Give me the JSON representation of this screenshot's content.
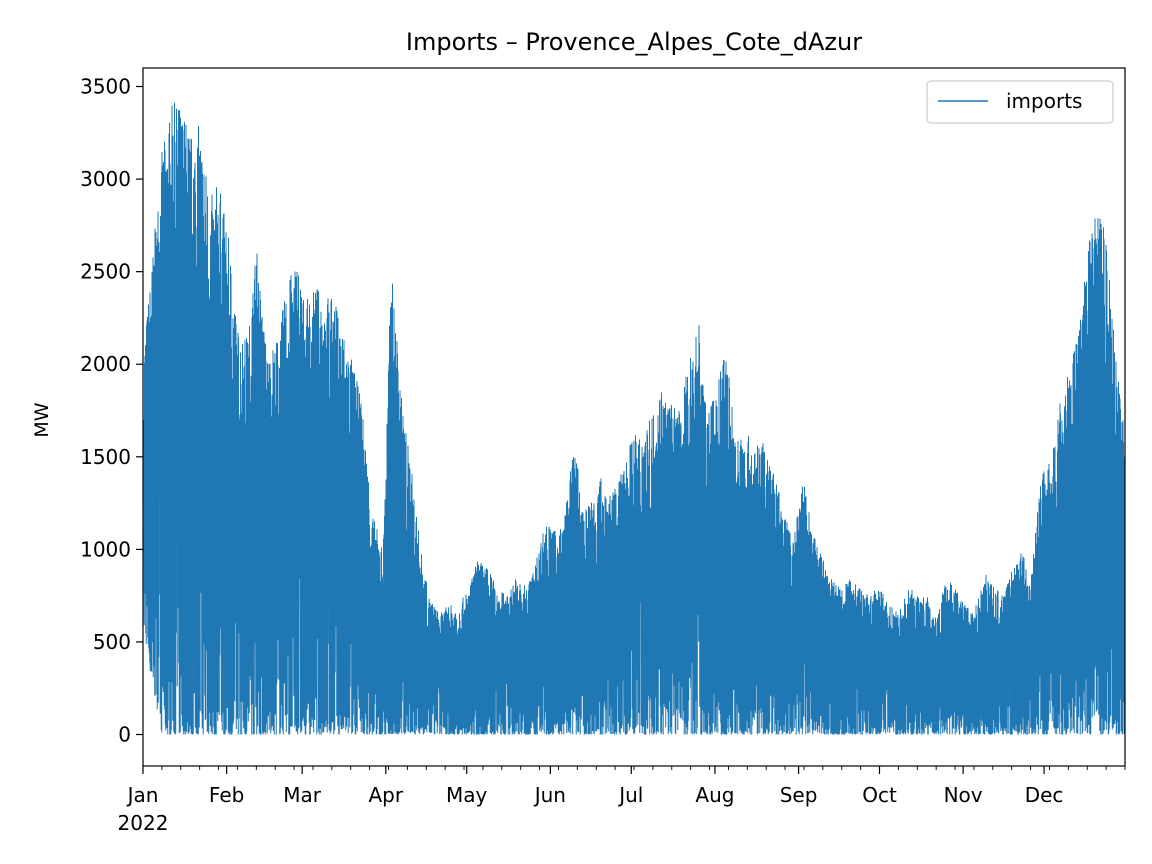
{
  "chart_data": {
    "type": "line",
    "title": "Imports – Provence_Alpes_Cote_dAzur",
    "ylabel": "MW",
    "xlabel": "",
    "x_range": [
      "2022-01-01",
      "2022-12-31"
    ],
    "ylim": [
      -170,
      3600
    ],
    "y_ticks": [
      0,
      500,
      1000,
      1500,
      2000,
      2500,
      3000,
      3500
    ],
    "x_ticks": [
      {
        "date": "2022-01-01",
        "label": "Jan",
        "sublabel": "2022"
      },
      {
        "date": "2022-02-01",
        "label": "Feb"
      },
      {
        "date": "2022-03-01",
        "label": "Mar"
      },
      {
        "date": "2022-04-01",
        "label": "Apr"
      },
      {
        "date": "2022-05-01",
        "label": "May"
      },
      {
        "date": "2022-06-01",
        "label": "Jun"
      },
      {
        "date": "2022-07-01",
        "label": "Jul"
      },
      {
        "date": "2022-08-01",
        "label": "Aug"
      },
      {
        "date": "2022-09-01",
        "label": "Sep"
      },
      {
        "date": "2022-10-01",
        "label": "Oct"
      },
      {
        "date": "2022-11-01",
        "label": "Nov"
      },
      {
        "date": "2022-12-01",
        "label": "Dec"
      }
    ],
    "grid": false,
    "legend": {
      "position": "top-right",
      "entries": [
        "imports"
      ]
    },
    "series": [
      {
        "name": "imports",
        "color": "#1f77b4",
        "x": [
          "2022-01-01",
          "2022-01-04",
          "2022-01-08",
          "2022-01-12",
          "2022-01-15",
          "2022-01-19",
          "2022-01-22",
          "2022-01-26",
          "2022-01-29",
          "2022-02-02",
          "2022-02-05",
          "2022-02-09",
          "2022-02-12",
          "2022-02-16",
          "2022-02-20",
          "2022-02-23",
          "2022-02-27",
          "2022-03-02",
          "2022-03-06",
          "2022-03-09",
          "2022-03-13",
          "2022-03-16",
          "2022-03-20",
          "2022-03-23",
          "2022-03-27",
          "2022-03-31",
          "2022-04-03",
          "2022-04-07",
          "2022-04-10",
          "2022-04-14",
          "2022-04-17",
          "2022-04-21",
          "2022-04-24",
          "2022-04-28",
          "2022-05-02",
          "2022-05-05",
          "2022-05-09",
          "2022-05-12",
          "2022-05-16",
          "2022-05-19",
          "2022-05-23",
          "2022-05-26",
          "2022-05-30",
          "2022-06-03",
          "2022-06-06",
          "2022-06-10",
          "2022-06-13",
          "2022-06-17",
          "2022-06-20",
          "2022-06-24",
          "2022-06-27",
          "2022-07-01",
          "2022-07-05",
          "2022-07-08",
          "2022-07-12",
          "2022-07-15",
          "2022-07-19",
          "2022-07-22",
          "2022-07-26",
          "2022-07-29",
          "2022-08-02",
          "2022-08-05",
          "2022-08-09",
          "2022-08-12",
          "2022-08-16",
          "2022-08-19",
          "2022-08-23",
          "2022-08-26",
          "2022-08-30",
          "2022-09-03",
          "2022-09-06",
          "2022-09-10",
          "2022-09-13",
          "2022-09-17",
          "2022-09-20",
          "2022-09-24",
          "2022-09-27",
          "2022-10-01",
          "2022-10-05",
          "2022-10-08",
          "2022-10-12",
          "2022-10-15",
          "2022-10-19",
          "2022-10-22",
          "2022-10-26",
          "2022-10-29",
          "2022-11-02",
          "2022-11-05",
          "2022-11-09",
          "2022-11-12",
          "2022-11-16",
          "2022-11-19",
          "2022-11-23",
          "2022-11-26",
          "2022-11-30",
          "2022-12-04",
          "2022-12-07",
          "2022-12-11",
          "2022-12-14",
          "2022-12-18",
          "2022-12-21",
          "2022-12-25",
          "2022-12-28",
          "2022-12-31"
        ],
        "max": [
          2050,
          2500,
          3150,
          3420,
          3410,
          3250,
          3300,
          2900,
          3000,
          2660,
          2200,
          2150,
          2650,
          2050,
          2150,
          2400,
          2600,
          2330,
          2420,
          2400,
          2350,
          2200,
          2000,
          1800,
          1200,
          1000,
          2540,
          1800,
          1500,
          1000,
          750,
          650,
          700,
          700,
          800,
          950,
          900,
          800,
          750,
          850,
          800,
          900,
          1150,
          1100,
          1150,
          1600,
          1200,
          1300,
          1400,
          1300,
          1400,
          1600,
          1650,
          1700,
          1900,
          1800,
          1750,
          2000,
          2270,
          1700,
          1900,
          2100,
          1600,
          1650,
          1550,
          1600,
          1400,
          1250,
          1050,
          1400,
          1100,
          950,
          850,
          800,
          850,
          800,
          750,
          800,
          700,
          650,
          800,
          750,
          750,
          650,
          850,
          800,
          700,
          650,
          900,
          800,
          750,
          900,
          1000,
          850,
          1400,
          1500,
          1800,
          2000,
          2200,
          2700,
          2950,
          2550,
          2000,
          1600
        ],
        "min": [
          600,
          300,
          0,
          0,
          0,
          0,
          0,
          0,
          0,
          0,
          0,
          0,
          0,
          0,
          0,
          0,
          0,
          0,
          0,
          0,
          0,
          0,
          0,
          0,
          0,
          0,
          0,
          0,
          0,
          0,
          0,
          0,
          0,
          0,
          0,
          0,
          0,
          0,
          0,
          0,
          0,
          0,
          0,
          0,
          0,
          0,
          0,
          0,
          0,
          0,
          0,
          0,
          0,
          0,
          0,
          0,
          0,
          0,
          0,
          0,
          0,
          0,
          0,
          0,
          0,
          0,
          0,
          0,
          0,
          0,
          0,
          0,
          0,
          0,
          0,
          0,
          0,
          0,
          0,
          0,
          0,
          0,
          0,
          0,
          0,
          0,
          0,
          0,
          0,
          0,
          0,
          0,
          0,
          0,
          0,
          0,
          0,
          0,
          0,
          0,
          0,
          0,
          0,
          0
        ]
      }
    ]
  }
}
